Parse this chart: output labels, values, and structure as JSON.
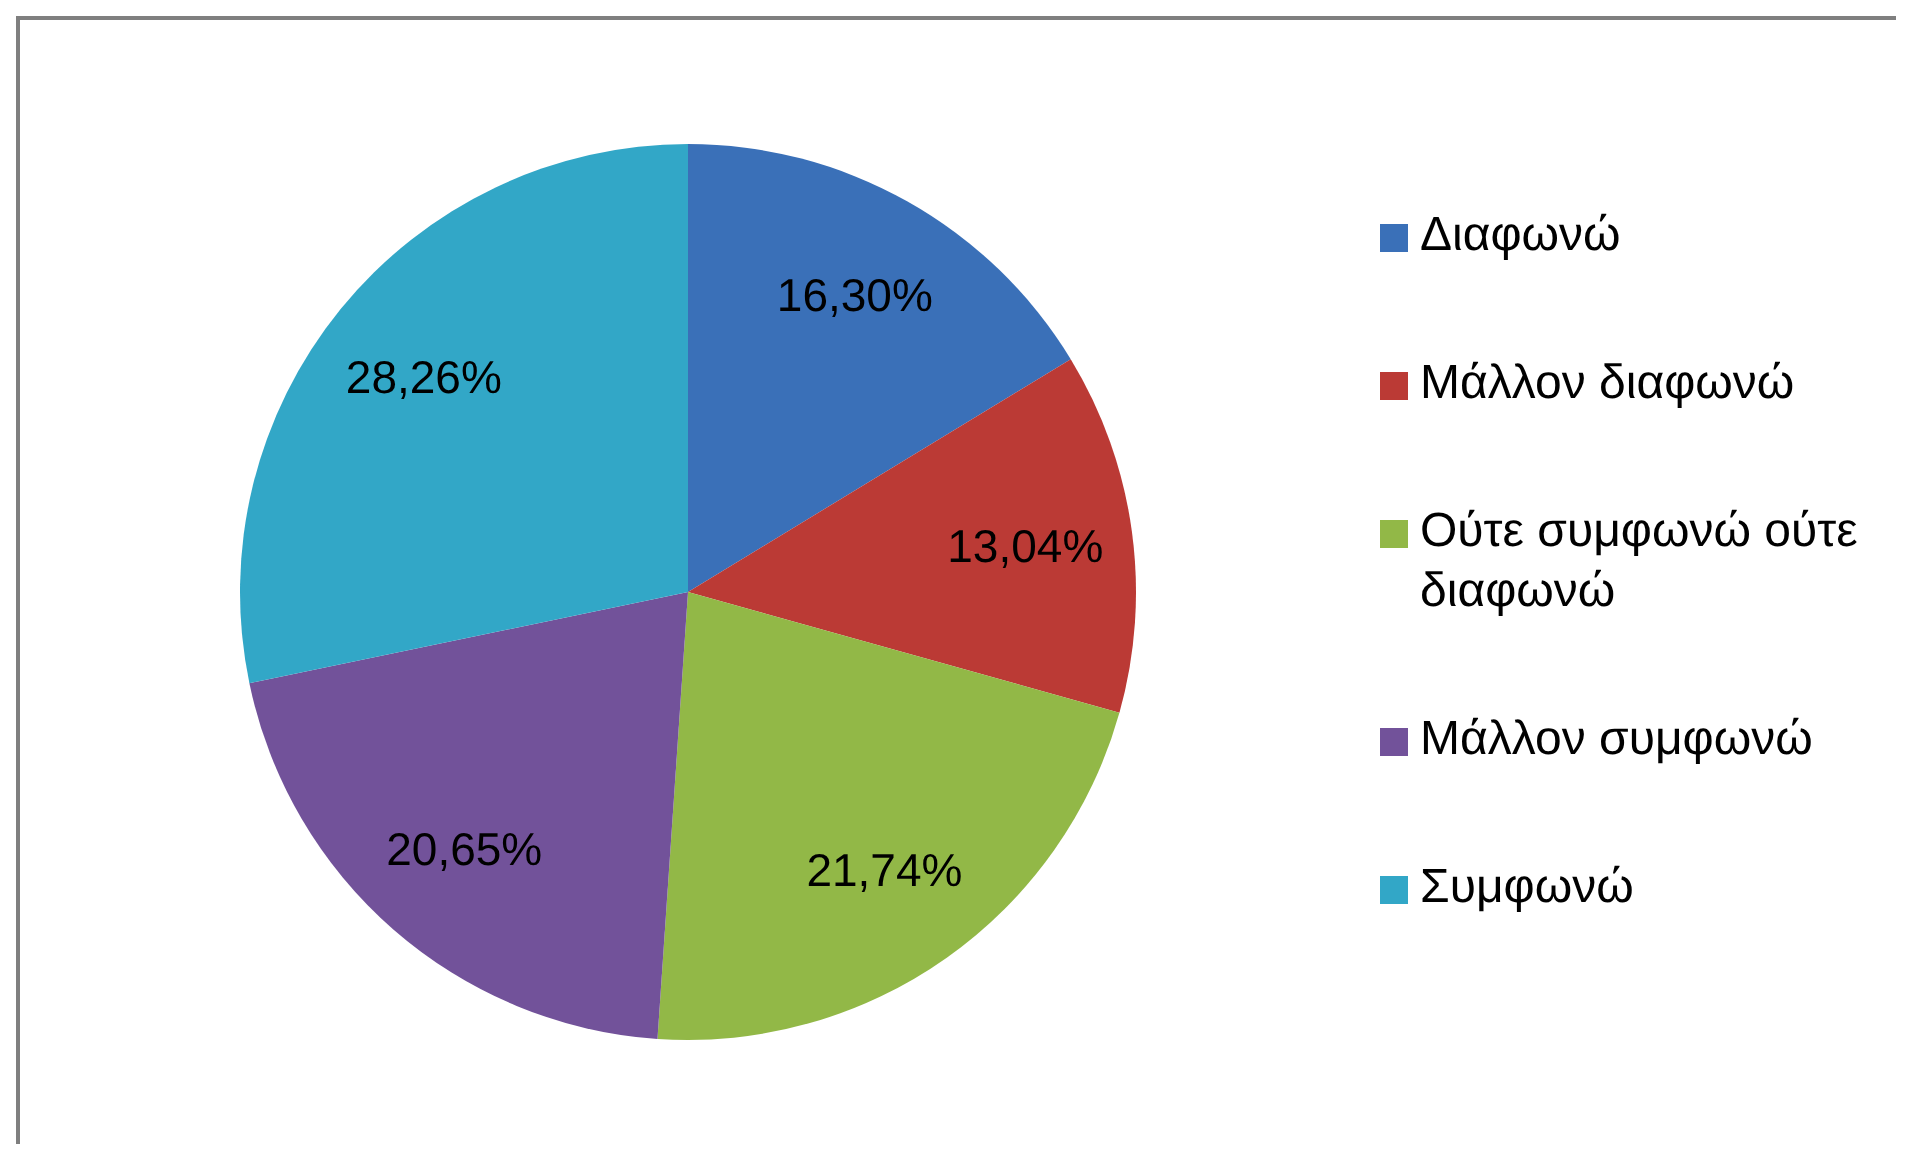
{
  "chart_data": {
    "type": "pie",
    "categories": [
      "Διαφωνώ",
      "Μάλλον διαφωνώ",
      "Ούτε συμφωνώ ούτε διαφωνώ",
      "Μάλλον συμφωνώ",
      "Συμφωνώ"
    ],
    "values": [
      16.3,
      13.04,
      21.74,
      20.65,
      28.26
    ],
    "colors": [
      "#3a70b8",
      "#bb3a35",
      "#92b847",
      "#72529a",
      "#32a7c7"
    ],
    "value_labels": [
      "16,30%",
      "13,04%",
      "21,74%",
      "20,65%",
      "28,26%"
    ],
    "legend": "right"
  }
}
